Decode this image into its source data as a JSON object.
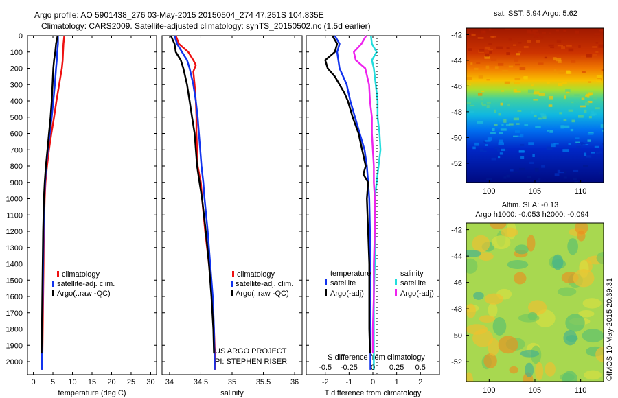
{
  "header": {
    "line1": "Argo profile: AO 5901438_276 03-May-2015 20150504_274 47.251S 104.835E",
    "line2": "Climatology: CARS2009. Satellite-adjusted climatology: synTS_20150502.nc (1.5d earlier)"
  },
  "credits": {
    "project": "US ARGO PROJECT",
    "pi": "PI: STEPHEN RISER",
    "stamp": "©IMOS 10-May-2015 20:39:31"
  },
  "colors": {
    "climatology": "#ee1111",
    "satellite": "#1133ee",
    "argo": "#000000",
    "sat_salinity": "#22dddd",
    "argo_salinity": "#ee22ee"
  },
  "depth_ticks": [
    "0",
    "100",
    "200",
    "300",
    "400",
    "500",
    "600",
    "700",
    "800",
    "900",
    "1000",
    "1100",
    "1200",
    "1300",
    "1400",
    "1500",
    "1600",
    "1700",
    "1800",
    "1900",
    "2000"
  ],
  "chart_data": [
    {
      "type": "line",
      "xlabel": "temperature (deg C)",
      "xticks": [
        "0",
        "5",
        "10",
        "15",
        "20",
        "25",
        "30"
      ],
      "xlim": [
        -1.5,
        31.5
      ],
      "ylim": [
        2080,
        0
      ],
      "legend": [
        "climatology",
        "satellite-adj. clim.",
        "Argo(..raw -QC)"
      ],
      "series": [
        {
          "name": "climatology",
          "depth": [
            0,
            50,
            100,
            150,
            200,
            300,
            400,
            500,
            600,
            700,
            800,
            900,
            1000,
            1200,
            1400,
            1600,
            1800,
            2000,
            2050
          ],
          "values": [
            7.9,
            7.7,
            7.6,
            7.5,
            7.3,
            6.6,
            5.9,
            5.3,
            4.6,
            4.0,
            3.5,
            3.1,
            2.9,
            2.7,
            2.6,
            2.5,
            2.4,
            2.3,
            2.3
          ]
        },
        {
          "name": "satellite-adj. clim.",
          "depth": [
            0,
            50,
            100,
            150,
            200,
            300,
            400,
            500,
            600,
            700,
            800,
            900,
            1000,
            1200,
            1400,
            1600,
            1800,
            2000,
            2050
          ],
          "values": [
            6.3,
            6.3,
            6.1,
            6.0,
            5.8,
            5.5,
            5.1,
            4.7,
            4.2,
            3.7,
            3.3,
            3.0,
            2.8,
            2.6,
            2.5,
            2.4,
            2.3,
            2.2,
            2.2
          ]
        },
        {
          "name": "Argo(..raw -QC)",
          "depth": [
            0,
            50,
            100,
            150,
            200,
            300,
            400,
            500,
            600,
            700,
            800,
            900,
            1000,
            1200,
            1400,
            1600,
            1800,
            1950
          ],
          "values": [
            6.2,
            5.8,
            5.6,
            5.3,
            5.1,
            4.9,
            4.7,
            4.4,
            4.0,
            3.6,
            3.2,
            2.9,
            2.7,
            2.5,
            2.4,
            2.3,
            2.2,
            2.1
          ]
        }
      ]
    },
    {
      "type": "line",
      "xlabel": "salinity",
      "xticks": [
        "34",
        "34.5",
        "35",
        "35.5",
        "36"
      ],
      "xlim": [
        33.88,
        36.12
      ],
      "ylim": [
        2080,
        0
      ],
      "legend": [
        "climatology",
        "satellite-adj. clim.",
        "Argo(..raw -QC)"
      ],
      "series": [
        {
          "name": "climatology",
          "depth": [
            0,
            50,
            100,
            150,
            180,
            220,
            300,
            400,
            500,
            600,
            700,
            800,
            900,
            1000,
            1200,
            1400,
            1600,
            1800,
            2000,
            2050
          ],
          "values": [
            34.1,
            34.15,
            34.3,
            34.38,
            34.42,
            34.38,
            34.4,
            34.42,
            34.43,
            34.43,
            34.44,
            34.45,
            34.5,
            34.52,
            34.57,
            34.63,
            34.68,
            34.71,
            34.73,
            34.73
          ]
        },
        {
          "name": "satellite-adj. clim.",
          "depth": [
            0,
            50,
            100,
            150,
            200,
            300,
            400,
            500,
            600,
            700,
            800,
            900,
            1000,
            1200,
            1400,
            1600,
            1800,
            2000,
            2050
          ],
          "values": [
            34.08,
            34.12,
            34.2,
            34.28,
            34.32,
            34.38,
            34.42,
            34.45,
            34.47,
            34.49,
            34.51,
            34.54,
            34.56,
            34.61,
            34.65,
            34.69,
            34.71,
            34.72,
            34.72
          ]
        },
        {
          "name": "Argo(..raw -QC)",
          "depth": [
            0,
            50,
            100,
            150,
            200,
            300,
            400,
            500,
            600,
            700,
            800,
            900,
            1000,
            1200,
            1400,
            1600,
            1800,
            1950
          ],
          "values": [
            34.02,
            34.08,
            34.1,
            34.18,
            34.22,
            34.28,
            34.32,
            34.36,
            34.4,
            34.42,
            34.44,
            34.48,
            34.52,
            34.58,
            34.63,
            34.67,
            34.7,
            34.71
          ]
        }
      ]
    },
    {
      "type": "line",
      "xlabel": "T difference from climatology",
      "xticks": [
        "-2",
        "-1",
        "0",
        "1",
        "2"
      ],
      "xlim": [
        -2.8,
        2.8
      ],
      "x2label": "S difference from climatology",
      "x2ticks": [
        "-0.5",
        "-0.25",
        "0",
        "0.25",
        "0.5"
      ],
      "ylim": [
        2080,
        0
      ],
      "legend_titles": [
        "temperature",
        "salinity"
      ],
      "legend": [
        "satellite",
        "Argo(-adj)",
        "satellite",
        "Argo(-adj)"
      ],
      "series": [
        {
          "name": "temperature satellite",
          "depth": [
            0,
            50,
            100,
            200,
            300,
            400,
            500,
            600,
            700,
            800,
            900,
            1000,
            1200,
            1400,
            1600,
            1800,
            2000,
            2050
          ],
          "values": [
            -1.6,
            -1.4,
            -1.5,
            -1.4,
            -1.1,
            -0.95,
            -0.75,
            -0.55,
            -0.35,
            -0.25,
            -0.2,
            -0.15,
            -0.12,
            -0.1,
            -0.1,
            -0.1,
            -0.1,
            -0.1
          ]
        },
        {
          "name": "temperature Argo(-adj)",
          "depth": [
            0,
            50,
            100,
            150,
            200,
            250,
            300,
            350,
            400,
            500,
            600,
            700,
            800,
            850,
            900,
            1000,
            1200,
            1400,
            1600,
            1800,
            1950
          ],
          "values": [
            -1.7,
            -1.5,
            -1.6,
            -2.0,
            -1.9,
            -1.6,
            -1.4,
            -1.2,
            -1.05,
            -0.85,
            -0.6,
            -0.45,
            -0.3,
            -0.4,
            -0.2,
            -0.25,
            -0.2,
            -0.15,
            -0.15,
            -0.15,
            -0.12
          ]
        },
        {
          "name": "salinity satellite",
          "depth": [
            0,
            50,
            100,
            150,
            200,
            300,
            400,
            500,
            600,
            700,
            800,
            900,
            1000,
            1200,
            1400,
            1600,
            1800,
            2000,
            2050
          ],
          "values": [
            -0.02,
            -0.01,
            0.04,
            -0.01,
            0.01,
            0.03,
            0.05,
            0.05,
            0.07,
            0.08,
            0.06,
            0.04,
            0.02,
            0.02,
            0.02,
            0.01,
            0.01,
            0.01,
            0.01
          ]
        },
        {
          "name": "salinity Argo(-adj)",
          "depth": [
            0,
            50,
            100,
            150,
            200,
            300,
            400,
            500,
            600,
            700,
            800,
            900,
            1000,
            1200,
            1400,
            1600,
            1800,
            1950
          ],
          "values": [
            -0.07,
            -0.12,
            -0.2,
            -0.18,
            -0.08,
            -0.04,
            -0.03,
            -0.01,
            -0.01,
            0.0,
            0.01,
            0.01,
            0.02,
            0.02,
            0.01,
            0.01,
            0.0,
            0.0
          ]
        }
      ]
    },
    {
      "type": "heatmap",
      "title": "sat. SST: 5.94 Argo: 5.62",
      "xticks": [
        "100",
        "105",
        "110"
      ],
      "yticks": [
        "-42",
        "-44",
        "-46",
        "-48",
        "-50",
        "-52"
      ],
      "xlim": [
        97.5,
        112.5
      ],
      "ylim": [
        -53.5,
        -41.5
      ]
    },
    {
      "type": "heatmap",
      "title": "Altim. SLA: -0.13",
      "subtitle": "Argo h1000: -0.053 h2000: -0.094",
      "xticks": [
        "100",
        "105",
        "110"
      ],
      "yticks": [
        "-42",
        "-44",
        "-46",
        "-48",
        "-50",
        "-52"
      ],
      "xlim": [
        97.5,
        112.5
      ],
      "ylim": [
        -53.5,
        -41.5
      ]
    }
  ]
}
